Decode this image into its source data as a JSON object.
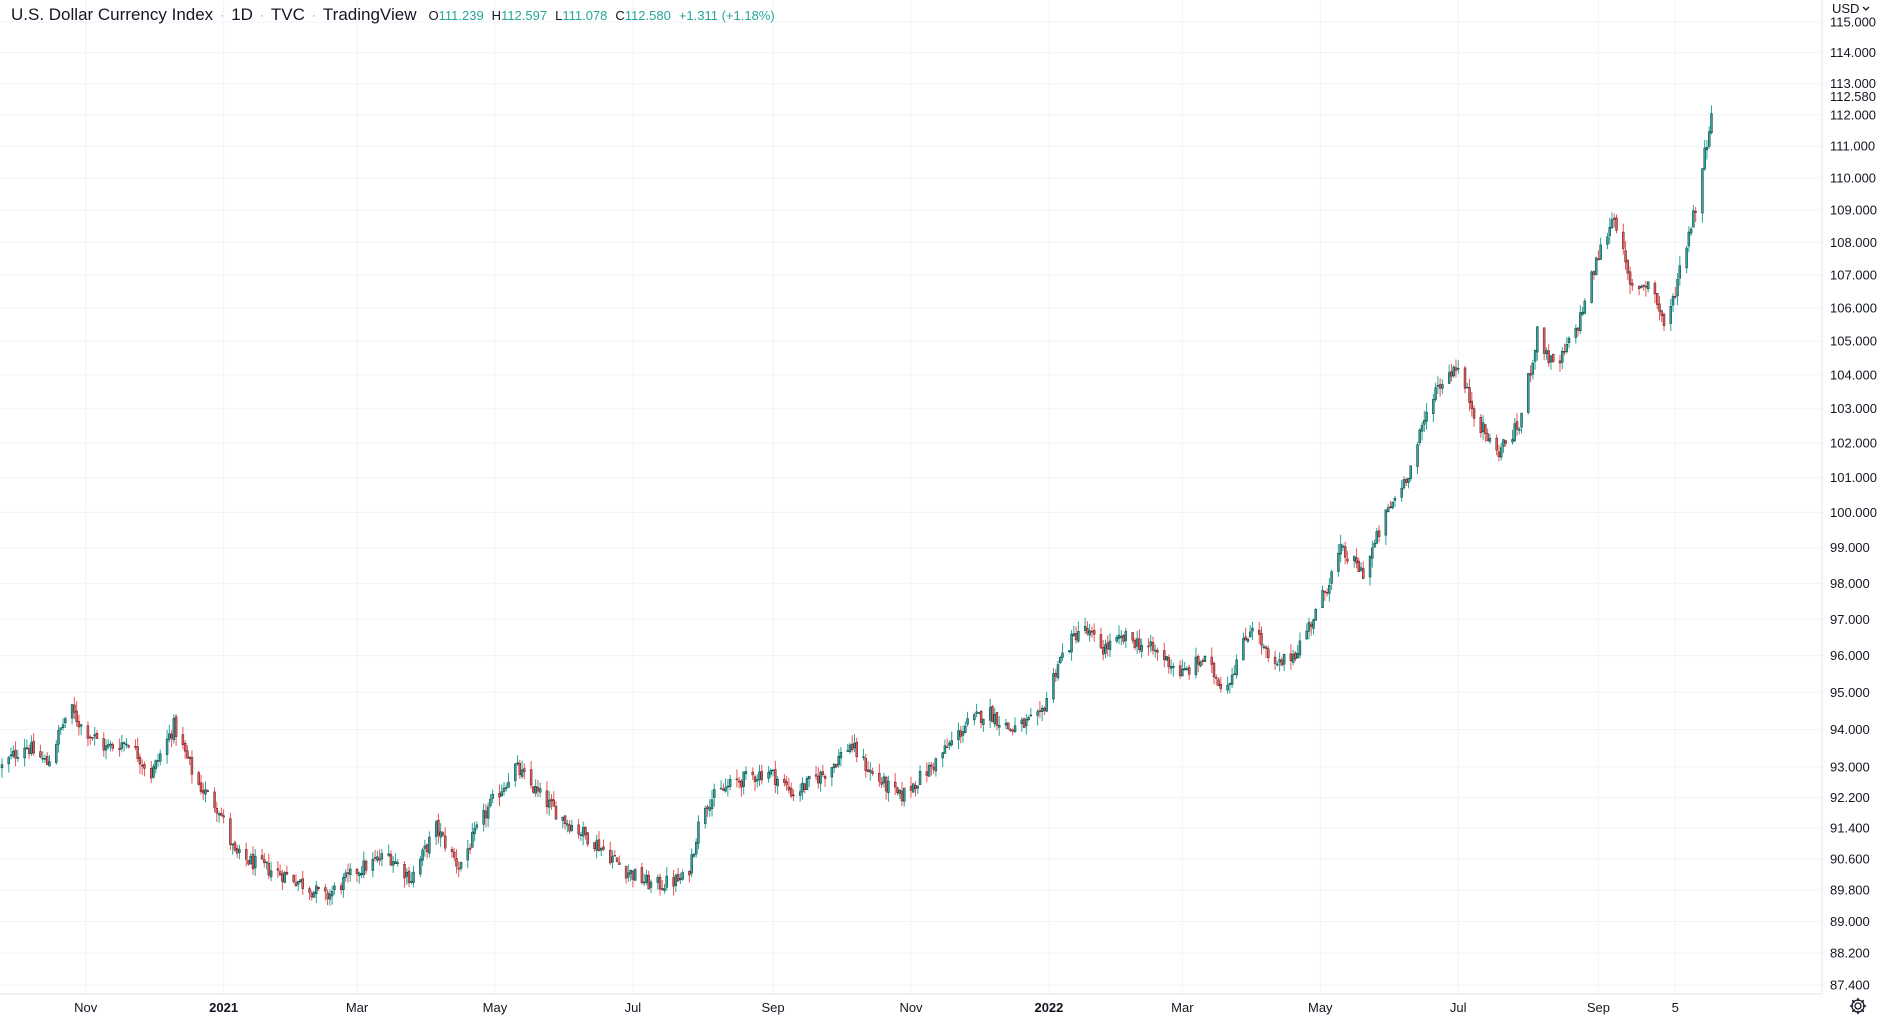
{
  "legend": {
    "title": "U.S. Dollar Currency Index",
    "interval": "1D",
    "exchange": "TVC",
    "source": "TradingView",
    "open_label": "O",
    "open": "111.239",
    "high_label": "H",
    "high": "112.597",
    "low_label": "L",
    "low": "111.078",
    "close_label": "C",
    "close": "112.580",
    "change": "+1.311 (+1.18%)"
  },
  "currency": "USD",
  "colors": {
    "up": "#26a69a",
    "down": "#ef5350",
    "wick": "#131722",
    "grid": "#f0f3fa",
    "last_price_line": "#26a69a"
  },
  "chart_data": {
    "type": "candlestick",
    "title": "U.S. Dollar Currency Index",
    "scale": "log",
    "ylim": [
      87.0,
      115.0
    ],
    "y_ticks": [
      "115.000",
      "114.000",
      "113.000",
      "112.000",
      "111.000",
      "110.000",
      "109.000",
      "108.000",
      "107.000",
      "106.000",
      "105.000",
      "104.000",
      "103.000",
      "102.000",
      "101.000",
      "100.000",
      "99.000",
      "98.000",
      "97.000",
      "96.000",
      "95.000",
      "94.000",
      "93.000",
      "92.200",
      "91.400",
      "90.600",
      "89.800",
      "89.000",
      "88.200",
      "87.400"
    ],
    "x_ticks": [
      {
        "label": "Nov",
        "date": "2020-11-01",
        "bold": false
      },
      {
        "label": "2021",
        "date": "2021-01-01",
        "bold": true
      },
      {
        "label": "Mar",
        "date": "2021-03-01",
        "bold": false
      },
      {
        "label": "May",
        "date": "2021-05-01",
        "bold": false
      },
      {
        "label": "Jul",
        "date": "2021-07-01",
        "bold": false
      },
      {
        "label": "Sep",
        "date": "2021-09-01",
        "bold": false
      },
      {
        "label": "Nov",
        "date": "2021-11-01",
        "bold": false
      },
      {
        "label": "2022",
        "date": "2022-01-01",
        "bold": true
      },
      {
        "label": "Mar",
        "date": "2022-03-01",
        "bold": false
      },
      {
        "label": "May",
        "date": "2022-05-01",
        "bold": false
      },
      {
        "label": "Jul",
        "date": "2022-07-01",
        "bold": false
      },
      {
        "label": "Sep",
        "date": "2022-09-01",
        "bold": false
      },
      {
        "label": "5",
        "date": "2022-10-05",
        "bold": false
      }
    ],
    "x_range": [
      "2020-09-25",
      "2022-10-23"
    ],
    "last_price": "112.580",
    "closes": [
      {
        "date": "2020-09-25",
        "close": 93.0
      },
      {
        "date": "2020-10-05",
        "close": 93.6
      },
      {
        "date": "2020-10-15",
        "close": 93.1
      },
      {
        "date": "2020-10-25",
        "close": 94.6
      },
      {
        "date": "2020-10-30",
        "close": 94.1
      },
      {
        "date": "2020-11-10",
        "close": 93.5
      },
      {
        "date": "2020-11-20",
        "close": 93.7
      },
      {
        "date": "2020-11-30",
        "close": 92.8
      },
      {
        "date": "2020-12-10",
        "close": 94.1
      },
      {
        "date": "2020-12-20",
        "close": 92.6
      },
      {
        "date": "2020-12-30",
        "close": 91.9
      },
      {
        "date": "2021-01-06",
        "close": 90.7
      },
      {
        "date": "2021-01-18",
        "close": 90.4
      },
      {
        "date": "2021-02-01",
        "close": 90.1
      },
      {
        "date": "2021-02-15",
        "close": 89.6
      },
      {
        "date": "2021-03-01",
        "close": 90.3
      },
      {
        "date": "2021-03-15",
        "close": 90.7
      },
      {
        "date": "2021-03-25",
        "close": 90.1
      },
      {
        "date": "2021-04-05",
        "close": 91.4
      },
      {
        "date": "2021-04-15",
        "close": 90.4
      },
      {
        "date": "2021-04-28",
        "close": 91.9
      },
      {
        "date": "2021-05-10",
        "close": 93.0
      },
      {
        "date": "2021-05-20",
        "close": 92.3
      },
      {
        "date": "2021-06-01",
        "close": 91.6
      },
      {
        "date": "2021-06-15",
        "close": 91.0
      },
      {
        "date": "2021-06-28",
        "close": 90.3
      },
      {
        "date": "2021-07-10",
        "close": 89.9
      },
      {
        "date": "2021-07-25",
        "close": 90.1
      },
      {
        "date": "2021-08-01",
        "close": 92.0
      },
      {
        "date": "2021-08-15",
        "close": 92.6
      },
      {
        "date": "2021-08-30",
        "close": 92.9
      },
      {
        "date": "2021-09-10",
        "close": 92.3
      },
      {
        "date": "2021-09-25",
        "close": 92.9
      },
      {
        "date": "2021-10-05",
        "close": 93.6
      },
      {
        "date": "2021-10-15",
        "close": 92.8
      },
      {
        "date": "2021-10-27",
        "close": 92.2
      },
      {
        "date": "2021-11-10",
        "close": 93.0
      },
      {
        "date": "2021-11-25",
        "close": 94.1
      },
      {
        "date": "2021-12-05",
        "close": 94.5
      },
      {
        "date": "2021-12-15",
        "close": 94.0
      },
      {
        "date": "2021-12-28",
        "close": 94.3
      },
      {
        "date": "2022-01-05",
        "close": 95.8
      },
      {
        "date": "2022-01-15",
        "close": 96.8
      },
      {
        "date": "2022-01-25",
        "close": 96.2
      },
      {
        "date": "2022-02-05",
        "close": 96.5
      },
      {
        "date": "2022-02-20",
        "close": 96.0
      },
      {
        "date": "2022-03-01",
        "close": 95.5
      },
      {
        "date": "2022-03-10",
        "close": 95.9
      },
      {
        "date": "2022-03-20",
        "close": 95.1
      },
      {
        "date": "2022-04-01",
        "close": 96.9
      },
      {
        "date": "2022-04-10",
        "close": 95.6
      },
      {
        "date": "2022-04-20",
        "close": 96.1
      },
      {
        "date": "2022-04-30",
        "close": 97.3
      },
      {
        "date": "2022-05-10",
        "close": 98.9
      },
      {
        "date": "2022-05-20",
        "close": 98.3
      },
      {
        "date": "2022-05-30",
        "close": 99.9
      },
      {
        "date": "2022-06-10",
        "close": 101.3
      },
      {
        "date": "2022-06-20",
        "close": 103.5
      },
      {
        "date": "2022-06-30",
        "close": 104.3
      },
      {
        "date": "2022-07-10",
        "close": 102.6
      },
      {
        "date": "2022-07-18",
        "close": 101.7
      },
      {
        "date": "2022-07-28",
        "close": 102.5
      },
      {
        "date": "2022-08-05",
        "close": 105.2
      },
      {
        "date": "2022-08-13",
        "close": 104.1
      },
      {
        "date": "2022-08-23",
        "close": 105.5
      },
      {
        "date": "2022-09-01",
        "close": 107.6
      },
      {
        "date": "2022-09-08",
        "close": 108.9
      },
      {
        "date": "2022-09-15",
        "close": 106.6
      },
      {
        "date": "2022-09-24",
        "close": 106.8
      },
      {
        "date": "2022-10-01",
        "close": 105.3
      },
      {
        "date": "2022-10-08",
        "close": 107.5
      },
      {
        "date": "2022-10-15",
        "close": 109.4
      },
      {
        "date": "2022-10-22",
        "close": 112.58
      }
    ]
  }
}
